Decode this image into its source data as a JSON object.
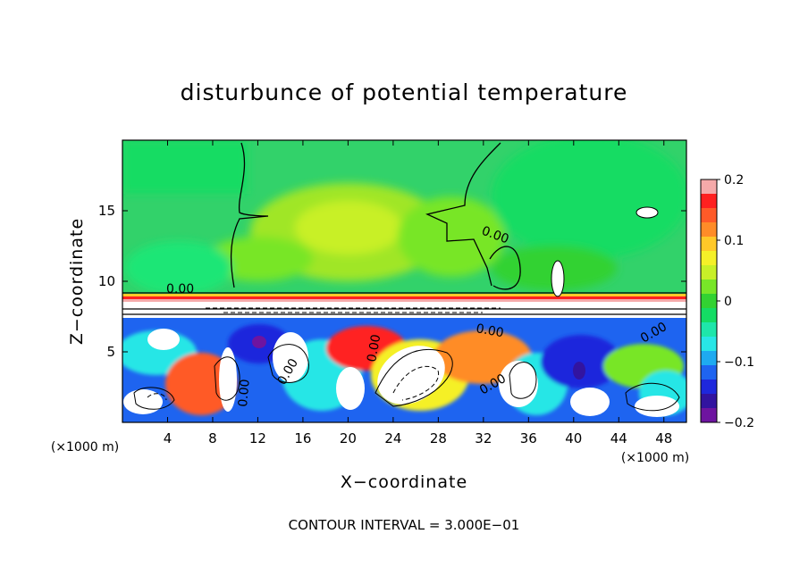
{
  "chart_data": {
    "type": "heatmap",
    "title": "disturbunce of potential temperature",
    "xlabel": "X−coordinate",
    "ylabel": "Z−coordinate",
    "x_unit": "(×1000 m)",
    "z_unit": "(×1000 m)",
    "xlim": [
      0,
      50
    ],
    "ylim": [
      0,
      20
    ],
    "x_ticks": [
      4,
      8,
      12,
      16,
      20,
      24,
      28,
      32,
      36,
      40,
      44,
      48
    ],
    "y_ticks": [
      5,
      10,
      15
    ],
    "colorbar": {
      "range": [
        -0.2,
        0.2
      ],
      "ticks": [
        {
          "value": 0.2,
          "label": "0.2"
        },
        {
          "value": 0.1,
          "label": "0.1"
        },
        {
          "value": 0,
          "label": "0"
        },
        {
          "value": -0.1,
          "label": "−0.1"
        },
        {
          "value": -0.2,
          "label": "−0.2"
        }
      ],
      "colors": [
        "#f5aaaa",
        "#ff2020",
        "#ff5a28",
        "#ff8c28",
        "#ffc828",
        "#f5f028",
        "#c8f028",
        "#78e628",
        "#32d232",
        "#14dc64",
        "#1ee6aa",
        "#28e6e6",
        "#1eaaf0",
        "#1e64f0",
        "#1e28dc",
        "#3214a0",
        "#6e14a0"
      ]
    },
    "contour_labels": [
      "0.00",
      "0.00",
      "0.00",
      "0.00",
      "0.00",
      "0.00",
      "0.00",
      "0.00"
    ],
    "footer": "CONTOUR INTERVAL = 3.000E−01"
  }
}
